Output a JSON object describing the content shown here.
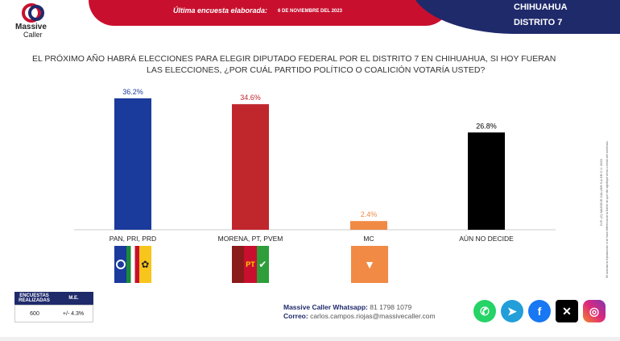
{
  "brand": {
    "name_line1": "Massive",
    "name_line2": "Caller"
  },
  "header": {
    "survey_label": "Última encuesta elaborada:",
    "survey_date": "6 DE NOVIEMBRE DEL 2023",
    "region_line1": "CHIHUAHUA",
    "region_line2": "DISTRITO 7"
  },
  "question": {
    "line1": "EL PRÓXIMO AÑO HABRÁ ELECCIONES PARA ELEGIR DIPUTADO FEDERAL POR EL DISTRITO 7 EN CHIHUAHUA, SI HOY FUERAN",
    "line2": "LAS ELECCIONES, ¿POR CUÁL PARTIDO POLÍTICO O COALICIÓN  VOTARÍA USTED?"
  },
  "chart_data": {
    "type": "bar",
    "categories": [
      "PAN, PRI, PRD",
      "MORENA, PT, PVEM",
      "MC",
      "AÚN NO DECIDE"
    ],
    "values": [
      36.2,
      34.6,
      2.4,
      26.8
    ],
    "value_labels": [
      "36.2%",
      "34.6%",
      "2.4%",
      "26.8%"
    ],
    "colors": [
      "#1a3a9c",
      "#c0272d",
      "#f08a44",
      "#000000"
    ],
    "label_colors": [
      "#1a3a9c",
      "#c0272d",
      "#f08a44",
      "#000000"
    ],
    "ylim": [
      0,
      40
    ],
    "grid": false,
    "title": "",
    "xlabel": "",
    "ylabel": ""
  },
  "party_logos": {
    "pan": "PAN",
    "pri": "PRI",
    "prd": "PRD",
    "morena": "MORENA",
    "pt": "PT",
    "pvem": "VERDE",
    "mc_line1": "MOVIMIENTO",
    "mc_line2": "CIUDADANO"
  },
  "survey": {
    "header_size": "ENCUESTAS REALIZADAS",
    "header_moe": "M.E.",
    "size": "600",
    "moe": "+/- 4.3%"
  },
  "contact": {
    "whatsapp_label": "Massive Caller Whatsapp:",
    "whatsapp": "81 1798 1079",
    "email_label": "Correo:",
    "email": "carlos.campos.riojas@massivecaller.com"
  },
  "social": [
    "whatsapp-icon",
    "telegram-icon",
    "facebook-icon",
    "x-icon",
    "instagram-icon"
  ],
  "side_note": {
    "line1": "D.R. (C) MASSIVE CALLER S.A DE C.V. 2023",
    "line2": "Se autoriza la reproducción si se hace referencia de la fuente sin que ello signifique venta o cesión del contenido."
  }
}
